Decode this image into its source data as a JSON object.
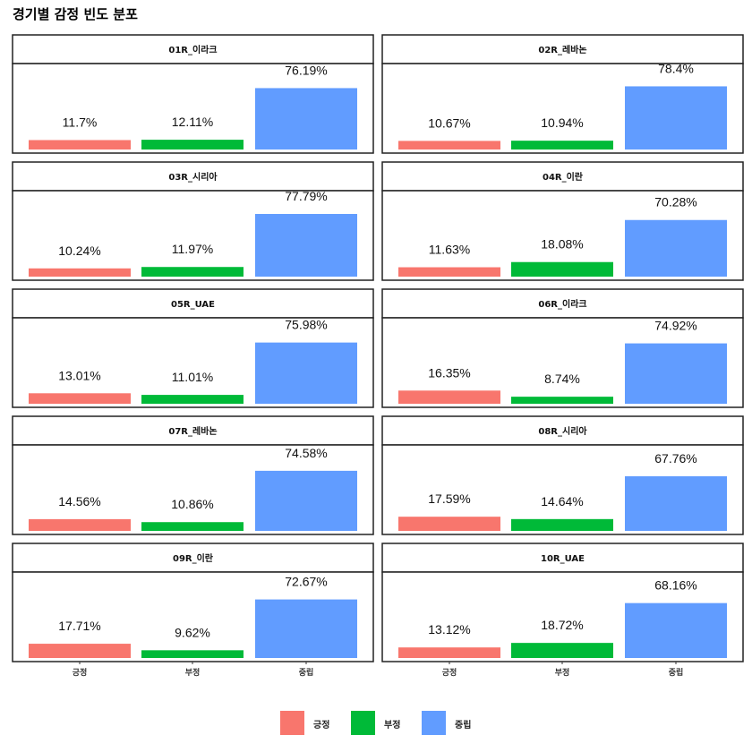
{
  "title": "경기별 감정 빈도 분포",
  "colors": {
    "긍정": "#F8766D",
    "부정": "#00BA38",
    "중립": "#619CFF"
  },
  "chart_data": {
    "type": "bar",
    "title": "경기별 감정 빈도 분포",
    "xlabel": "",
    "ylabel": "",
    "ylim": [
      0,
      100
    ],
    "grid": false,
    "legend_position": "bottom",
    "categories": [
      "긍정",
      "부정",
      "중립"
    ],
    "facets": [
      {
        "label": "01R_이라크",
        "values": [
          11.7,
          12.11,
          76.19
        ],
        "labels": [
          "11.7%",
          "12.11%",
          "76.19%"
        ]
      },
      {
        "label": "02R_레바논",
        "values": [
          10.67,
          10.94,
          78.4
        ],
        "labels": [
          "10.67%",
          "10.94%",
          "78.4%"
        ]
      },
      {
        "label": "03R_시리아",
        "values": [
          10.24,
          11.97,
          77.79
        ],
        "labels": [
          "10.24%",
          "11.97%",
          "77.79%"
        ]
      },
      {
        "label": "04R_이란",
        "values": [
          11.63,
          18.08,
          70.28
        ],
        "labels": [
          "11.63%",
          "18.08%",
          "70.28%"
        ]
      },
      {
        "label": "05R_UAE",
        "values": [
          13.01,
          11.01,
          75.98
        ],
        "labels": [
          "13.01%",
          "11.01%",
          "75.98%"
        ]
      },
      {
        "label": "06R_이라크",
        "values": [
          16.35,
          8.74,
          74.92
        ],
        "labels": [
          "16.35%",
          "8.74%",
          "74.92%"
        ]
      },
      {
        "label": "07R_레바논",
        "values": [
          14.56,
          10.86,
          74.58
        ],
        "labels": [
          "14.56%",
          "10.86%",
          "74.58%"
        ]
      },
      {
        "label": "08R_시리아",
        "values": [
          17.59,
          14.64,
          67.76
        ],
        "labels": [
          "17.59%",
          "14.64%",
          "67.76%"
        ]
      },
      {
        "label": "09R_이란",
        "values": [
          17.71,
          9.62,
          72.67
        ],
        "labels": [
          "17.71%",
          "9.62%",
          "72.67%"
        ]
      },
      {
        "label": "10R_UAE",
        "values": [
          13.12,
          18.72,
          68.16
        ],
        "labels": [
          "13.12%",
          "18.72%",
          "68.16%"
        ]
      }
    ],
    "legend": [
      "긍정",
      "부정",
      "중립"
    ]
  }
}
